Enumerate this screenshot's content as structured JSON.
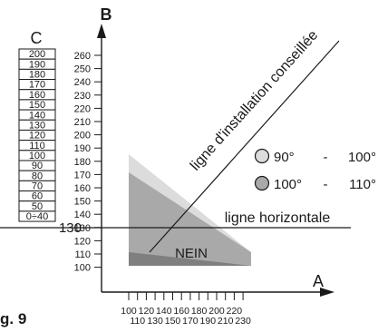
{
  "figure_label": "g. 9",
  "axis_b": {
    "label": "B",
    "ticks": [
      "260",
      "250",
      "240",
      "230",
      "220",
      "210",
      "200",
      "190",
      "180",
      "170",
      "160",
      "150",
      "140",
      "130",
      "120",
      "110",
      "100"
    ]
  },
  "axis_a": {
    "label": "A",
    "ticks_top": [
      "100",
      "120",
      "140",
      "160",
      "180",
      "200",
      "220"
    ],
    "ticks_bottom": [
      "110",
      "130",
      "150",
      "170",
      "190",
      "210",
      "230"
    ]
  },
  "scale_c": {
    "label": "C",
    "cells": [
      "200",
      "190",
      "180",
      "170",
      "160",
      "150",
      "140",
      "130",
      "120",
      "110",
      "100",
      "90",
      "80",
      "70",
      "60",
      "50",
      "0÷40"
    ]
  },
  "marker_value": "130",
  "lines": {
    "recommended": "ligne d'installation conseillée",
    "horizontal": "ligne horizontale"
  },
  "zone_label": "NEIN",
  "legend": [
    {
      "from": "90°",
      "sep": "-",
      "to": "100°",
      "color": "#dcdcdc"
    },
    {
      "from": "100°",
      "sep": "-",
      "to": "110°",
      "color": "#a9a9a9"
    }
  ]
}
